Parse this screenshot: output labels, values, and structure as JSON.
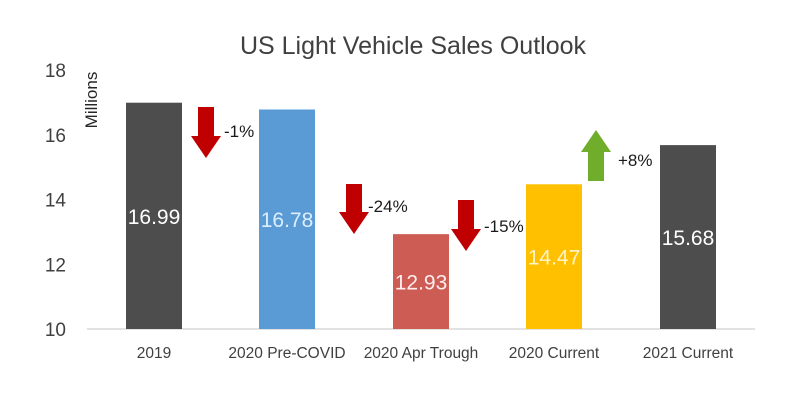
{
  "chart_data": {
    "type": "bar",
    "title": "US Light Vehicle Sales Outlook",
    "ylabel": "Millions",
    "xlabel": "",
    "ylim": [
      10,
      18
    ],
    "yticks": [
      "10",
      "12",
      "14",
      "16",
      "18"
    ],
    "grid": false,
    "categories": [
      "2019",
      "2020 Pre-COVID",
      "2020 Apr Trough",
      "2020 Current",
      "2021 Current"
    ],
    "values": [
      16.99,
      16.78,
      12.93,
      14.47,
      15.68
    ],
    "value_labels": [
      "16.99",
      "16.78",
      "12.93",
      "14.47",
      "15.68"
    ],
    "bar_colors": [
      "#4d4d4d",
      "#5b9bd5",
      "#cd5c55",
      "#ffc000",
      "#4d4d4d"
    ],
    "value_label_colors": [
      "#ffffff",
      "#ddeeff",
      "#ffeeee",
      "#fff3c8",
      "#ffffff"
    ],
    "changes": [
      {
        "label": "-1%",
        "direction": "down",
        "color": "#c00000"
      },
      {
        "label": "-24%",
        "direction": "down",
        "color": "#c00000"
      },
      {
        "label": "-15%",
        "direction": "down",
        "color": "#c00000"
      },
      {
        "label": "+8%",
        "direction": "up",
        "color": "#70ad2a"
      }
    ]
  }
}
